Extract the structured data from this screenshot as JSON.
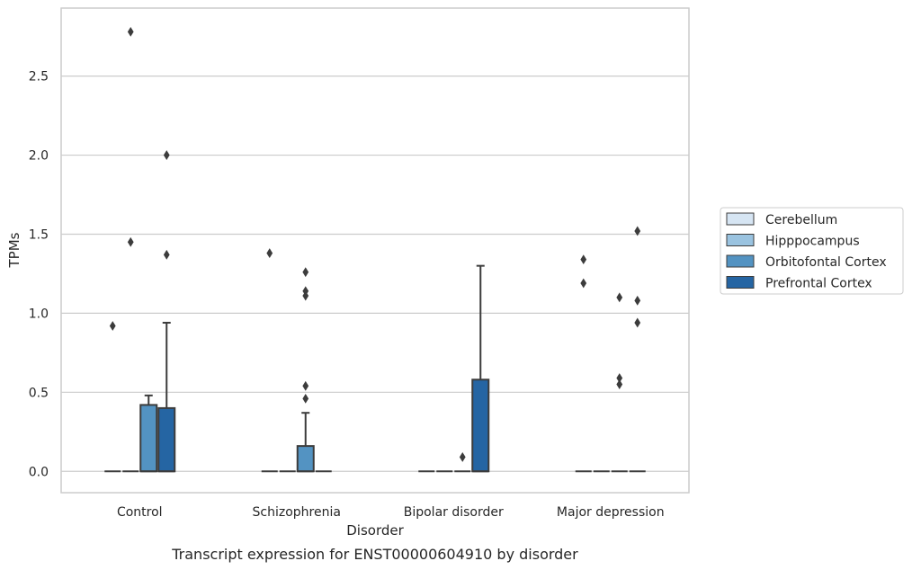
{
  "caption": "Transcript expression for ENST00000604910 by disorder",
  "chart_data": {
    "type": "box",
    "title": "",
    "xlabel": "Disorder",
    "ylabel": "TPMs",
    "ylim": [
      -0.135,
      2.93
    ],
    "yticks": [
      0.0,
      0.5,
      1.0,
      1.5,
      2.0,
      2.5
    ],
    "ytick_labels": [
      "0.0",
      "0.5",
      "1.0",
      "1.5",
      "2.0",
      "2.5"
    ],
    "grid": "horizontal",
    "legend_position": "right",
    "categories": [
      "Control",
      "Schizophrenia",
      "Bipolar disorder",
      "Major depression"
    ],
    "series": [
      {
        "name": "Cerebellum",
        "color": "#d6e5f3",
        "boxes": [
          {
            "q1": 0,
            "median": 0,
            "q3": 0,
            "whisker_low": 0,
            "whisker_high": 0,
            "outliers": [
              0.92
            ]
          },
          {
            "q1": 0,
            "median": 0,
            "q3": 0,
            "whisker_low": 0,
            "whisker_high": 0,
            "outliers": [
              1.38
            ]
          },
          {
            "q1": 0,
            "median": 0,
            "q3": 0,
            "whisker_low": 0,
            "whisker_high": 0,
            "outliers": []
          },
          {
            "q1": 0,
            "median": 0,
            "q3": 0,
            "whisker_low": 0,
            "whisker_high": 0,
            "outliers": [
              1.19,
              1.34
            ]
          }
        ]
      },
      {
        "name": "Hipppocampus",
        "color": "#9ac3e0",
        "boxes": [
          {
            "q1": 0,
            "median": 0,
            "q3": 0,
            "whisker_low": 0,
            "whisker_high": 0,
            "outliers": [
              1.45,
              2.78
            ]
          },
          {
            "q1": 0,
            "median": 0,
            "q3": 0,
            "whisker_low": 0,
            "whisker_high": 0,
            "outliers": []
          },
          {
            "q1": 0,
            "median": 0,
            "q3": 0,
            "whisker_low": 0,
            "whisker_high": 0,
            "outliers": []
          },
          {
            "q1": 0,
            "median": 0,
            "q3": 0,
            "whisker_low": 0,
            "whisker_high": 0,
            "outliers": []
          }
        ]
      },
      {
        "name": "Orbitofontal Cortex",
        "color": "#5393c2",
        "boxes": [
          {
            "q1": 0,
            "median": 0,
            "q3": 0.42,
            "whisker_low": 0,
            "whisker_high": 0.48,
            "outliers": []
          },
          {
            "q1": 0,
            "median": 0,
            "q3": 0.16,
            "whisker_low": 0,
            "whisker_high": 0.37,
            "outliers": [
              0.46,
              0.54,
              1.11,
              1.14,
              1.26
            ]
          },
          {
            "q1": 0,
            "median": 0,
            "q3": 0,
            "whisker_low": 0,
            "whisker_high": 0,
            "outliers": [
              0.09
            ]
          },
          {
            "q1": 0,
            "median": 0,
            "q3": 0,
            "whisker_low": 0,
            "whisker_high": 0,
            "outliers": [
              0.55,
              0.59,
              1.1
            ]
          }
        ]
      },
      {
        "name": "Prefrontal Cortex",
        "color": "#2565a3",
        "boxes": [
          {
            "q1": 0,
            "median": 0,
            "q3": 0.4,
            "whisker_low": 0,
            "whisker_high": 0.94,
            "outliers": [
              1.37,
              2.0
            ]
          },
          {
            "q1": 0,
            "median": 0,
            "q3": 0,
            "whisker_low": 0,
            "whisker_high": 0,
            "outliers": []
          },
          {
            "q1": 0,
            "median": 0,
            "q3": 0.58,
            "whisker_low": 0,
            "whisker_high": 1.3,
            "outliers": []
          },
          {
            "q1": 0,
            "median": 0,
            "q3": 0,
            "whisker_low": 0,
            "whisker_high": 0,
            "outliers": [
              0.94,
              1.08,
              1.52
            ]
          }
        ]
      }
    ]
  }
}
